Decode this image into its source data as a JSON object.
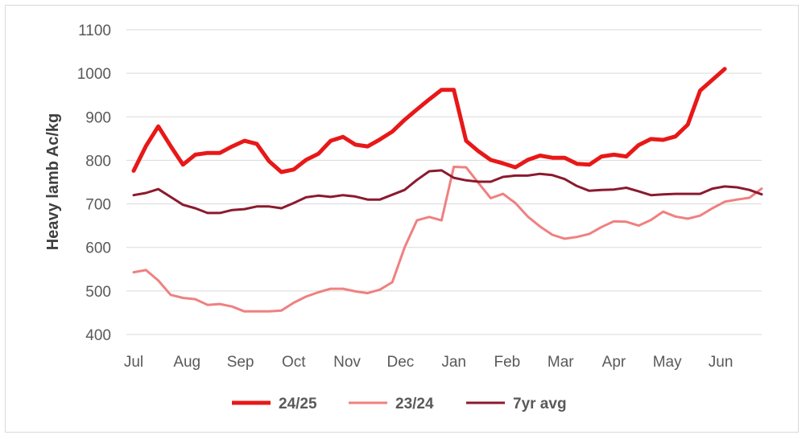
{
  "chart_data": {
    "type": "line",
    "title": "",
    "xlabel": "",
    "ylabel": "Heavy lamb Ac/kg",
    "ylim": [
      400,
      1100
    ],
    "yticks": [
      400,
      500,
      600,
      700,
      800,
      900,
      1000,
      1100
    ],
    "x_range": [
      0,
      51
    ],
    "months": [
      {
        "label": "Jul",
        "x": 0
      },
      {
        "label": "Aug",
        "x": 4.33
      },
      {
        "label": "Sep",
        "x": 8.67
      },
      {
        "label": "Oct",
        "x": 13
      },
      {
        "label": "Nov",
        "x": 17.33
      },
      {
        "label": "Dec",
        "x": 21.67
      },
      {
        "label": "Jan",
        "x": 26
      },
      {
        "label": "Feb",
        "x": 30.33
      },
      {
        "label": "Mar",
        "x": 34.67
      },
      {
        "label": "Apr",
        "x": 39
      },
      {
        "label": "May",
        "x": 43.33
      },
      {
        "label": "Jun",
        "x": 47.67
      }
    ],
    "legend_position": "bottom",
    "series": [
      {
        "name": "24/25",
        "color": "#e81818",
        "width": 5,
        "values": [
          776,
          833,
          878,
          833,
          790,
          813,
          817,
          817,
          832,
          845,
          838,
          798,
          773,
          779,
          801,
          815,
          845,
          854,
          836,
          832,
          848,
          866,
          893,
          917,
          940,
          962,
          962,
          845,
          821,
          801,
          793,
          784,
          801,
          811,
          806,
          806,
          792,
          790,
          809,
          813,
          809,
          835,
          849,
          847,
          855,
          882,
          960,
          985,
          1010
        ]
      },
      {
        "name": "23/24",
        "color": "#f08080",
        "width": 3,
        "values": [
          543,
          548,
          524,
          491,
          484,
          481,
          468,
          470,
          464,
          453,
          453,
          453,
          455,
          473,
          487,
          497,
          505,
          505,
          499,
          495,
          503,
          520,
          600,
          662,
          670,
          662,
          785,
          784,
          748,
          713,
          723,
          702,
          671,
          648,
          629,
          620,
          624,
          631,
          647,
          660,
          659,
          650,
          663,
          682,
          671,
          666,
          673,
          690,
          705,
          710,
          714,
          735
        ]
      },
      {
        "name": "7yr avg",
        "color": "#8b1a2e",
        "width": 3,
        "values": [
          720,
          725,
          734,
          716,
          698,
          690,
          679,
          679,
          686,
          688,
          694,
          694,
          690,
          702,
          715,
          719,
          716,
          720,
          717,
          710,
          710,
          721,
          732,
          755,
          775,
          777,
          760,
          754,
          751,
          751,
          762,
          765,
          765,
          769,
          766,
          757,
          741,
          730,
          732,
          733,
          737,
          729,
          720,
          722,
          723,
          723,
          723,
          735,
          740,
          738,
          732,
          722
        ]
      }
    ]
  }
}
